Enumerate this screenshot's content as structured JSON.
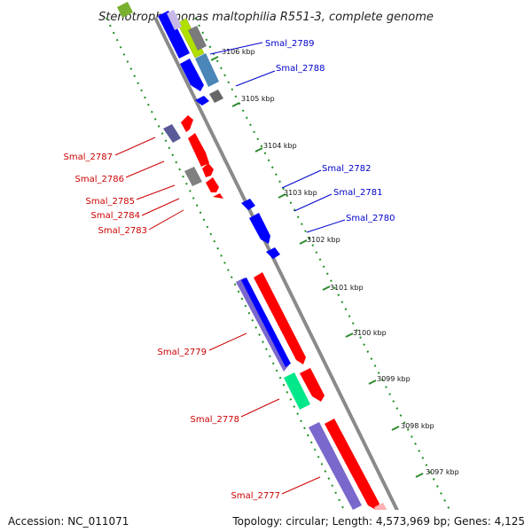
{
  "title": "Stenotrophomonas maltophilia R551-3, complete genome",
  "accession": "Accession: NC_011071",
  "topology": "Topology: circular; Length: 4,573,969 bp; Genes: 4,125",
  "colors": {
    "backbone": "#8a8a8a",
    "tick_green": "#2e8b2e",
    "label_red": "#cc0000",
    "label_blue": "#0000cc",
    "gene_red": "#ff0000",
    "gene_blue": "#0000ff",
    "gene_purple": "#7b68cc",
    "gene_gray": "#808080",
    "gene_green": "#00e88a",
    "gene_steel": "#4a86b8"
  },
  "kbp_ticks": [
    "3106 kbp",
    "3105 kbp",
    "3104 kbp",
    "3103 kbp",
    "3102 kbp",
    "3101 kbp",
    "3100 kbp",
    "3099 kbp",
    "3098 kbp",
    "3097 kbp"
  ],
  "forward_labels": [
    "Smal_2789",
    "Smal_2788",
    "Smal_2782",
    "Smal_2781",
    "Smal_2780"
  ],
  "reverse_labels": [
    "Smal_2787",
    "Smal_2786",
    "Smal_2785",
    "Smal_2784",
    "Smal_2783",
    "Smal_2779",
    "Smal_2778",
    "Smal_2777"
  ]
}
